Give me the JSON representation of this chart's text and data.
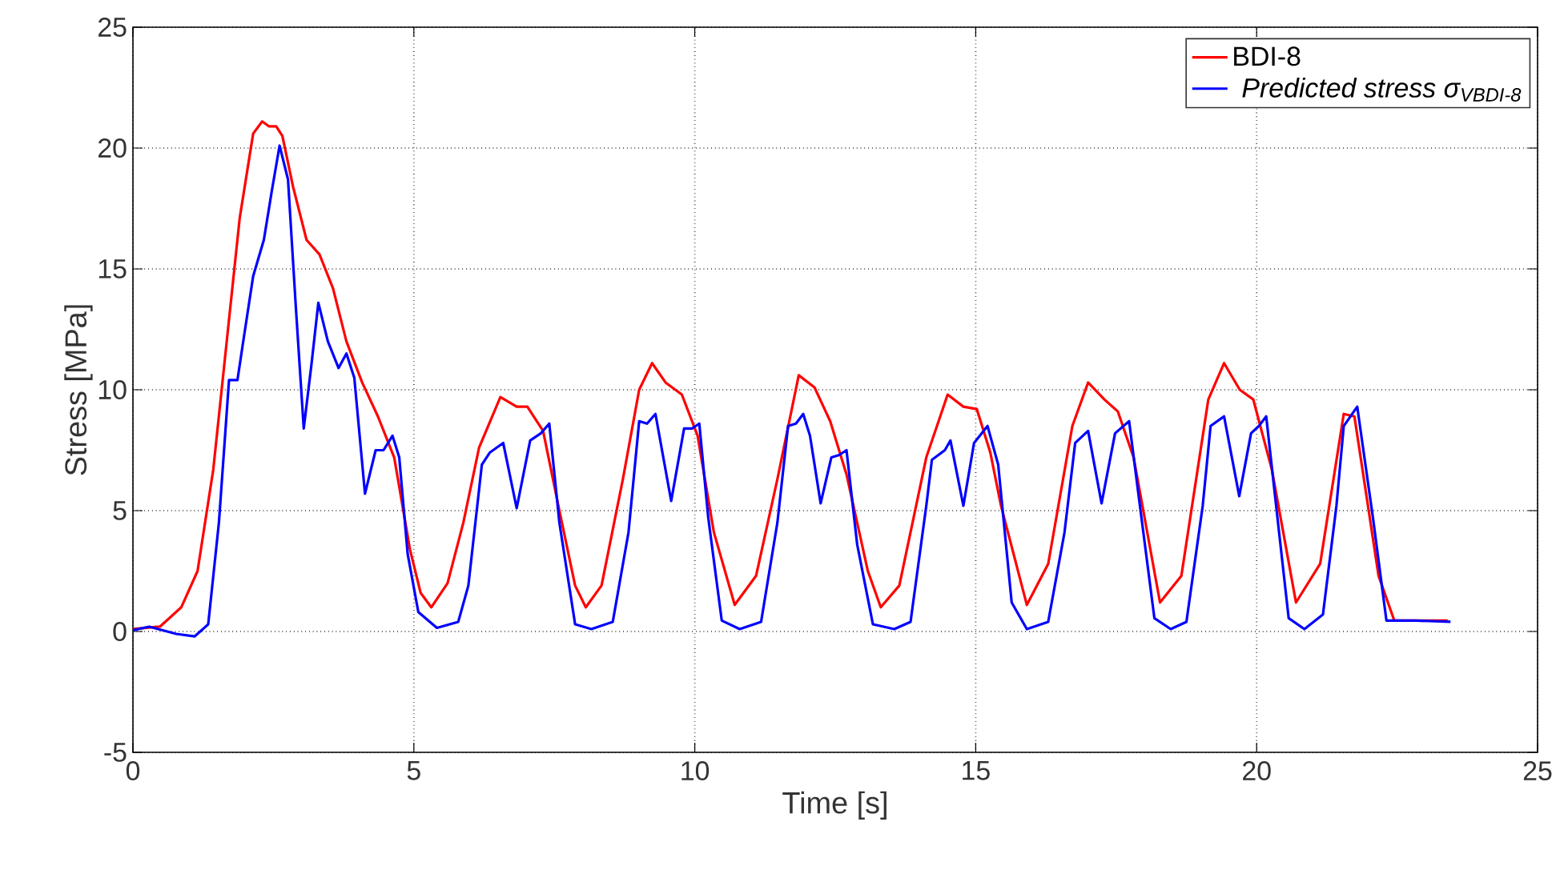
{
  "chart_data": {
    "type": "line",
    "xlabel": "Time [s]",
    "ylabel": "Stress [MPa]",
    "xlim": [
      0,
      25
    ],
    "xticks": [
      0,
      5,
      10,
      15,
      20,
      25
    ],
    "ylim": [
      -5,
      25
    ],
    "yticks": [
      -5,
      0,
      5,
      10,
      15,
      20,
      25
    ],
    "grid": true,
    "legend": "top right",
    "line_style": "solid",
    "marker": "none",
    "series": [
      {
        "name": "BDI-8",
        "color": "#ff0000",
        "x": [
          0,
          0.48,
          0.86,
          1.15,
          1.43,
          1.71,
          1.9,
          2.14,
          2.3,
          2.42,
          2.55,
          2.66,
          2.85,
          3.09,
          3.32,
          3.56,
          3.8,
          4.08,
          4.36,
          4.65,
          4.93,
          5.12,
          5.31,
          5.6,
          5.88,
          6.16,
          6.54,
          6.83,
          7.02,
          7.3,
          7.59,
          7.87,
          8.06,
          8.34,
          8.72,
          9.01,
          9.24,
          9.48,
          9.77,
          10.05,
          10.34,
          10.71,
          11.09,
          11.47,
          11.85,
          12.13,
          12.41,
          12.7,
          13.08,
          13.31,
          13.64,
          14.12,
          14.5,
          14.78,
          15.02,
          15.26,
          15.45,
          15.91,
          16.29,
          16.72,
          17.0,
          17.29,
          17.53,
          17.81,
          18.28,
          18.66,
          19.14,
          19.42,
          19.7,
          19.94,
          20.27,
          20.7,
          21.13,
          21.55,
          21.74,
          22.17,
          22.45,
          23.4
        ],
        "values": [
          0.1,
          0.2,
          1.0,
          2.5,
          6.7,
          12.9,
          17.1,
          20.6,
          21.1,
          20.9,
          20.9,
          20.5,
          18.4,
          16.2,
          15.6,
          14.2,
          12.0,
          10.3,
          8.9,
          7.2,
          3.4,
          1.6,
          1.0,
          2.0,
          4.5,
          7.6,
          9.7,
          9.3,
          9.3,
          8.3,
          5.0,
          1.9,
          1.0,
          1.9,
          6.3,
          10.0,
          11.1,
          10.3,
          9.8,
          8.1,
          4.1,
          1.1,
          2.3,
          6.3,
          10.6,
          10.1,
          8.7,
          6.5,
          2.5,
          1.0,
          1.9,
          7.2,
          9.8,
          9.3,
          9.2,
          7.4,
          5.2,
          1.1,
          2.8,
          8.5,
          10.3,
          9.6,
          9.1,
          7.2,
          1.2,
          2.3,
          9.6,
          11.1,
          10.0,
          9.6,
          6.7,
          1.2,
          2.8,
          9.0,
          8.9,
          2.3,
          0.45,
          0.45
        ]
      },
      {
        "name": "Predicted stress σ$_{VBDI-8}$",
        "color": "#0000ff",
        "x": [
          0,
          0.29,
          0.77,
          1.1,
          1.34,
          1.53,
          1.71,
          1.86,
          1.95,
          2.14,
          2.33,
          2.47,
          2.61,
          2.76,
          2.9,
          3.04,
          3.18,
          3.3,
          3.47,
          3.66,
          3.8,
          3.94,
          4.13,
          4.32,
          4.46,
          4.62,
          4.74,
          4.89,
          5.08,
          5.41,
          5.79,
          5.97,
          6.21,
          6.35,
          6.59,
          6.83,
          7.07,
          7.26,
          7.41,
          7.59,
          7.87,
          8.16,
          8.54,
          8.82,
          9.01,
          9.15,
          9.3,
          9.58,
          9.81,
          9.95,
          10.08,
          10.24,
          10.48,
          10.8,
          11.18,
          11.47,
          11.66,
          11.8,
          11.93,
          12.05,
          12.24,
          12.43,
          12.57,
          12.7,
          12.89,
          13.17,
          13.55,
          13.84,
          14.12,
          14.22,
          14.45,
          14.55,
          14.78,
          14.97,
          15.21,
          15.4,
          15.64,
          15.91,
          16.29,
          16.58,
          16.77,
          17.0,
          17.24,
          17.48,
          17.73,
          17.95,
          18.18,
          18.47,
          18.75,
          19.04,
          19.18,
          19.42,
          19.69,
          19.9,
          20.04,
          20.17,
          20.38,
          20.57,
          20.85,
          21.18,
          21.42,
          21.55,
          21.79,
          22.07,
          22.31,
          22.83,
          23.45
        ],
        "values": [
          0.05,
          0.2,
          -0.1,
          -0.2,
          0.3,
          4.5,
          10.4,
          10.4,
          11.8,
          14.7,
          16.2,
          18.2,
          20.1,
          18.7,
          13.4,
          8.4,
          11.1,
          13.6,
          12.0,
          10.9,
          11.5,
          10.5,
          5.7,
          7.5,
          7.5,
          8.1,
          7.2,
          3.2,
          0.8,
          0.15,
          0.4,
          1.9,
          6.9,
          7.4,
          7.8,
          5.1,
          7.9,
          8.2,
          8.6,
          4.5,
          0.3,
          0.1,
          0.4,
          4.1,
          8.7,
          8.6,
          9.0,
          5.4,
          8.4,
          8.4,
          8.6,
          4.7,
          0.45,
          0.1,
          0.4,
          4.5,
          8.5,
          8.6,
          9.0,
          8.1,
          5.3,
          7.2,
          7.3,
          7.5,
          3.6,
          0.3,
          0.1,
          0.4,
          5.2,
          7.1,
          7.5,
          7.9,
          5.2,
          7.8,
          8.5,
          6.9,
          1.2,
          0.1,
          0.4,
          4.1,
          7.8,
          8.3,
          5.3,
          8.2,
          8.7,
          4.7,
          0.55,
          0.1,
          0.4,
          5.2,
          8.5,
          8.9,
          5.6,
          8.2,
          8.5,
          8.9,
          4.5,
          0.55,
          0.1,
          0.7,
          5.2,
          8.5,
          9.3,
          4.7,
          0.45,
          0.45,
          0.4
        ]
      }
    ]
  }
}
